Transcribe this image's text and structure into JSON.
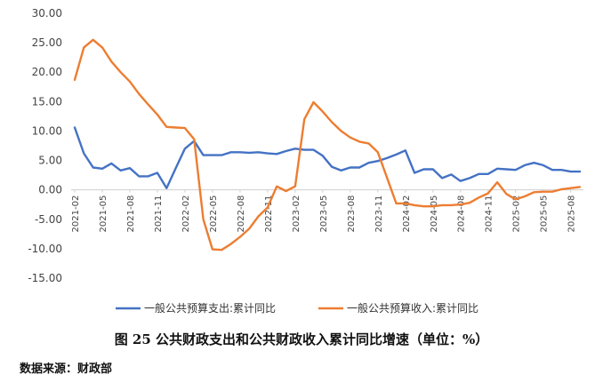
{
  "chart_data": {
    "type": "line",
    "title": "",
    "ylim": [
      -15,
      30
    ],
    "yticks": [
      "30.00",
      "25.00",
      "20.00",
      "15.00",
      "10.00",
      "5.00",
      "0.00",
      "-5.00",
      "-10.00",
      "-15.00"
    ],
    "ytick_values": [
      30,
      25,
      20,
      15,
      10,
      5,
      0,
      -5,
      -10,
      -15
    ],
    "x": [
      "2021-02",
      "2021-03",
      "2021-04",
      "2021-05",
      "2021-06",
      "2021-07",
      "2021-08",
      "2021-09",
      "2021-10",
      "2021-11",
      "2021-12",
      "2022-01",
      "2022-02",
      "2022-03",
      "2022-04",
      "2022-05",
      "2022-06",
      "2022-07",
      "2022-08",
      "2022-09",
      "2022-10",
      "2022-11",
      "2022-12",
      "2023-01",
      "2023-02",
      "2023-03",
      "2023-04",
      "2023-05",
      "2023-06",
      "2023-07",
      "2023-08",
      "2023-09",
      "2023-10",
      "2023-11",
      "2023-12",
      "2024-01",
      "2024-02",
      "2024-03",
      "2024-04",
      "2024-05",
      "2024-06",
      "2024-07",
      "2024-08",
      "2024-09",
      "2024-10",
      "2024-11",
      "2024-12",
      "2025-01",
      "2025-02",
      "2025-03",
      "2025-04",
      "2025-05",
      "2025-06",
      "2025-07",
      "2025-08",
      "2025-09"
    ],
    "xtick_labels": [
      "2021-02",
      "2021-05",
      "2021-08",
      "2021-11",
      "2022-02",
      "2022-05",
      "2022-08",
      "2022-11",
      "2023-02",
      "2023-05",
      "2023-08",
      "2023-11",
      "2024-02",
      "2024-05",
      "2024-08",
      "2024-11",
      "2025-02",
      "2025-05",
      "2025-08"
    ],
    "grid": false,
    "legend_position": "bottom",
    "series": [
      {
        "name": "一般公共预算支出:累计同比",
        "color": "#4472C4",
        "values": [
          10.6,
          6.2,
          3.8,
          3.6,
          4.5,
          3.3,
          3.7,
          2.3,
          2.3,
          2.9,
          0.3,
          3.7,
          7.0,
          8.3,
          5.9,
          5.9,
          5.9,
          6.4,
          6.4,
          6.3,
          6.4,
          6.2,
          6.1,
          6.6,
          7.0,
          6.8,
          6.8,
          5.8,
          3.9,
          3.3,
          3.8,
          3.8,
          4.6,
          4.9,
          5.4,
          6.0,
          6.7,
          2.9,
          3.5,
          3.5,
          2.0,
          2.6,
          1.5,
          2.0,
          2.7,
          2.7,
          3.6,
          3.5,
          3.4,
          4.2,
          4.6,
          4.2,
          3.4,
          3.4,
          3.1,
          3.1
        ]
      },
      {
        "name": "一般公共预算收入:累计同比",
        "color": "#ED7D31",
        "values": [
          18.7,
          24.2,
          25.5,
          24.2,
          21.8,
          20.0,
          18.4,
          16.3,
          14.5,
          12.8,
          10.7,
          10.6,
          10.5,
          8.6,
          -5.0,
          -10.1,
          -10.2,
          -9.2,
          -8.0,
          -6.6,
          -4.5,
          -3.0,
          0.6,
          -0.2,
          0.6,
          12.0,
          14.9,
          13.3,
          11.5,
          10.0,
          8.9,
          8.2,
          7.9,
          6.4,
          2.1,
          -2.3,
          -2.3,
          -2.6,
          -2.8,
          -2.8,
          -2.6,
          -2.6,
          -2.5,
          -2.2,
          -1.3,
          -0.6,
          1.3,
          -0.7,
          -1.6,
          -1.1,
          -0.4,
          -0.3,
          -0.3,
          0.1,
          0.3,
          0.5
        ]
      }
    ]
  },
  "caption": "图 25 公共财政支出和公共财政收入累计同比增速（单位：%）",
  "source": "数据来源：财政部"
}
